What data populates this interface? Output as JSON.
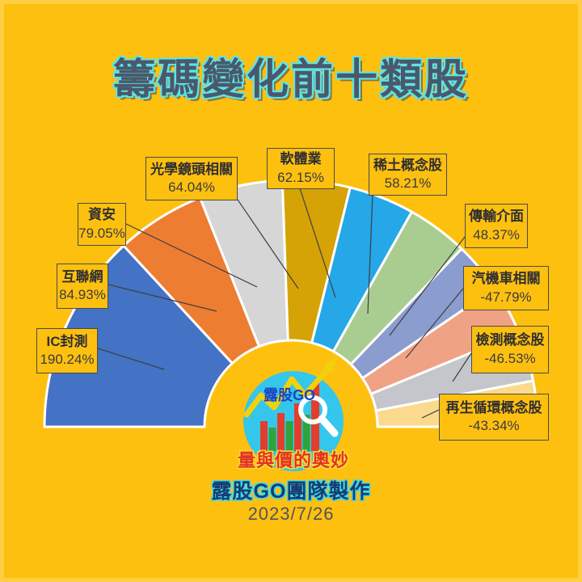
{
  "title": "籌碼變化前十類股",
  "logo": {
    "brand": "露股GO",
    "tagline": "量與價的奧妙"
  },
  "footer": {
    "credit": "露股GO團隊製作",
    "date": "2023/7/26"
  },
  "colors": {
    "background": "#FEC00F",
    "title_fill": "#49596B",
    "title_outline": "#5FE4E6",
    "label_border": "#4a4a4a",
    "leader_line": "#3f3f3f",
    "wedge_stroke": "#ffffff",
    "logo_circle": "#35C6EC",
    "logo_brand_text": "#1D44C2",
    "logo_tagline_text": "#E23128",
    "logo_bar_red": "#E23E2C",
    "logo_bar_green": "#2FA43C",
    "logo_arrow_yellow": "#F2D10A"
  },
  "chart_data": {
    "type": "pie",
    "subtype": "semicircle-fan-donut",
    "title": "籌碼變化前十類股",
    "unit": "%",
    "legend_position": "callout-labels",
    "angle_rule": "wedge angle proportional to |value|, spanning 180° (left) to 0° (right)",
    "items": [
      {
        "name": "IC封測",
        "value": 190.24,
        "value_label": "190.24%",
        "color": "#4472C4"
      },
      {
        "name": "互聯網",
        "value": 84.93,
        "value_label": "84.93%",
        "color": "#ED7D31"
      },
      {
        "name": "資安",
        "value": 79.05,
        "value_label": "79.05%",
        "color": "#D6D6D6"
      },
      {
        "name": "光學鏡頭相關",
        "value": 64.04,
        "value_label": "64.04%",
        "color": "#D5A306"
      },
      {
        "name": "軟體業",
        "value": 62.15,
        "value_label": "62.15%",
        "color": "#25A7E8"
      },
      {
        "name": "稀土概念股",
        "value": 58.21,
        "value_label": "58.21%",
        "color": "#A9CD91"
      },
      {
        "name": "傳輸介面",
        "value": 48.37,
        "value_label": "48.37%",
        "color": "#8B9CCE"
      },
      {
        "name": "汽機車相關",
        "value": -47.79,
        "value_label": "-47.79%",
        "color": "#F0A285"
      },
      {
        "name": "檢測概念股",
        "value": -46.53,
        "value_label": "-46.53%",
        "color": "#C4C6CB"
      },
      {
        "name": "再生循環概念股",
        "value": -43.34,
        "value_label": "-43.34%",
        "color": "#FBDA8E"
      }
    ]
  }
}
